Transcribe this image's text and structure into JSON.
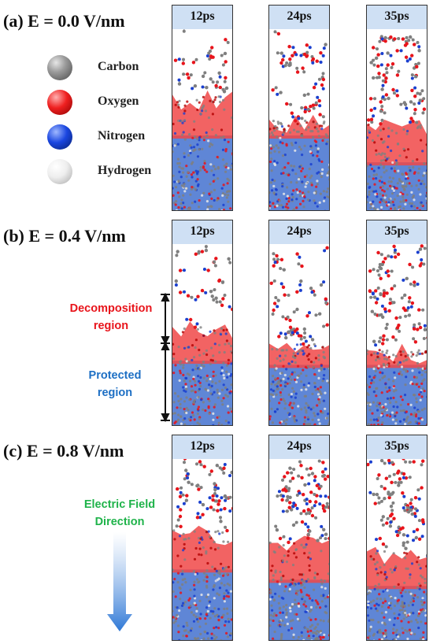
{
  "rows": [
    {
      "title": "(a)  E = 0.0 V/nm",
      "panels": [
        {
          "time": "12ps",
          "red_boundary": 0.54,
          "blue_boundary": 0.37,
          "molecule_density": "low"
        },
        {
          "time": "24ps",
          "red_boundary": 0.42,
          "blue_boundary": 0.37,
          "molecule_density": "medium"
        },
        {
          "time": "35ps",
          "red_boundary": 0.4,
          "blue_boundary": 0.24,
          "molecule_density": "high"
        }
      ]
    },
    {
      "title": "(b)  E = 0.4 V/nm",
      "panels": [
        {
          "time": "12ps",
          "red_boundary": 0.46,
          "blue_boundary": 0.32,
          "molecule_density": "low"
        },
        {
          "time": "24ps",
          "red_boundary": 0.38,
          "blue_boundary": 0.3,
          "molecule_density": "medium"
        },
        {
          "time": "35ps",
          "red_boundary": 0.35,
          "blue_boundary": 0.3,
          "molecule_density": "high"
        }
      ]
    },
    {
      "title": "(c)  E = 0.8 V/nm",
      "panels": [
        {
          "time": "12ps",
          "red_boundary": 0.52,
          "blue_boundary": 0.35,
          "molecule_density": "medium"
        },
        {
          "time": "24ps",
          "red_boundary": 0.46,
          "blue_boundary": 0.3,
          "molecule_density": "high"
        },
        {
          "time": "35ps",
          "red_boundary": 0.42,
          "blue_boundary": 0.27,
          "molecule_density": "high"
        }
      ]
    }
  ],
  "legend": [
    {
      "label": "Carbon",
      "color": "#7f7f7f"
    },
    {
      "label": "Oxygen",
      "color": "#e8141b"
    },
    {
      "label": "Nitrogen",
      "color": "#1a3fcf"
    },
    {
      "label": "Hydrogen",
      "color": "#e8e8e8"
    }
  ],
  "regions": {
    "decomposition": {
      "line1": "Decomposition",
      "line2": "region",
      "color": "#e8141b"
    },
    "protected": {
      "line1": "Protected",
      "line2": "region",
      "color": "#1d6fc4"
    }
  },
  "field": {
    "line1": "Electric Field",
    "line2": "Direction",
    "color": "#1fb34a",
    "arrow_color": "#2e78d6"
  },
  "colors": {
    "decomposition_layer": "#f04848",
    "protected_layer": "#5f86d6",
    "time_label_bg": "#cfe0f4"
  }
}
